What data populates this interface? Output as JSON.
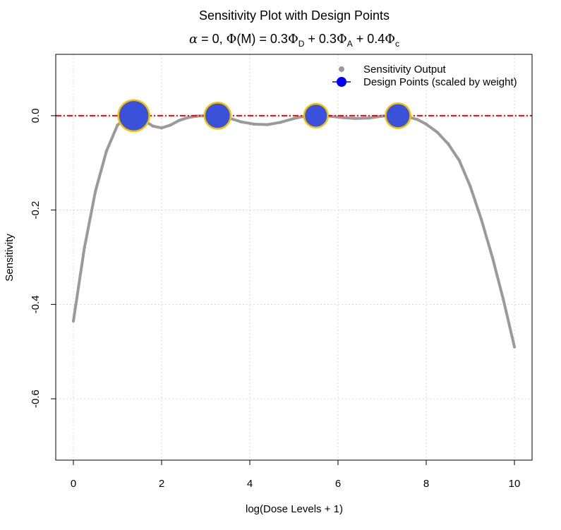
{
  "chart_data": {
    "type": "scatter",
    "title": "Sensitivity Plot with Design Points",
    "subtitle": {
      "alpha": "α",
      "alpha_value": " = 0, ",
      "phi": "Φ",
      "M": "M",
      "equals": " = 0.3",
      "sub_D": "D",
      "plus1": " + 0.3",
      "sub_A": "A",
      "plus2": " + 0.4",
      "sub_c": "c"
    },
    "xlabel": "log(Dose Levels + 1)",
    "ylabel": "Sensitivity",
    "xlim": [
      -0.4,
      10.4
    ],
    "ylim": [
      -0.73,
      0.13
    ],
    "x_ticks": [
      0,
      2,
      4,
      6,
      8,
      10
    ],
    "x_tick_labels": [
      "0",
      "2",
      "4",
      "6",
      "8",
      "10"
    ],
    "y_ticks": [
      0.0,
      -0.2,
      -0.4,
      -0.6
    ],
    "y_tick_labels": [
      "0.0",
      "-0.2",
      "-0.4",
      "-0.6"
    ],
    "grid": true,
    "reference_line_y": 0,
    "legend": {
      "position": "top-right",
      "entries": [
        "Sensitivity Output",
        "Design Points (scaled by weight)"
      ]
    },
    "series": [
      {
        "name": "Sensitivity Output",
        "style": "points",
        "x": [
          0,
          0.25,
          0.5,
          0.75,
          1.0,
          1.2,
          1.4,
          1.6,
          1.8,
          2.0,
          2.2,
          2.4,
          2.6,
          2.8,
          3.0,
          3.27,
          3.5,
          3.8,
          4.1,
          4.4,
          4.7,
          5.0,
          5.2,
          5.5,
          5.8,
          6.1,
          6.4,
          6.7,
          7.0,
          7.36,
          7.6,
          7.8,
          8.0,
          8.25,
          8.5,
          8.75,
          9.0,
          9.25,
          9.5,
          9.75,
          10.0
        ],
        "y": [
          -0.435,
          -0.28,
          -0.16,
          -0.075,
          -0.02,
          -0.003,
          0,
          -0.01,
          -0.022,
          -0.026,
          -0.02,
          -0.01,
          -0.004,
          -0.001,
          0,
          0,
          -0.004,
          -0.013,
          -0.018,
          -0.019,
          -0.014,
          -0.006,
          -0.002,
          0,
          -0.001,
          -0.004,
          -0.006,
          -0.005,
          -0.001,
          0,
          -0.003,
          -0.008,
          -0.018,
          -0.035,
          -0.06,
          -0.095,
          -0.15,
          -0.22,
          -0.3,
          -0.39,
          -0.49
        ],
        "color": "#9a9a9a"
      },
      {
        "name": "Design Points (scaled by weight)",
        "style": "circles",
        "x": [
          1.37,
          3.27,
          5.5,
          7.36
        ],
        "y": [
          0,
          0,
          0,
          0
        ],
        "weights": [
          0.35,
          0.25,
          0.18,
          0.2
        ],
        "color": "#3a52d9",
        "edge_color": "#f2c200"
      }
    ],
    "colors": {
      "reference_line": "#ff0000",
      "grid": "#d4d4d4",
      "legend_point": "#9a9a9a",
      "legend_design": "#0000ff"
    }
  }
}
